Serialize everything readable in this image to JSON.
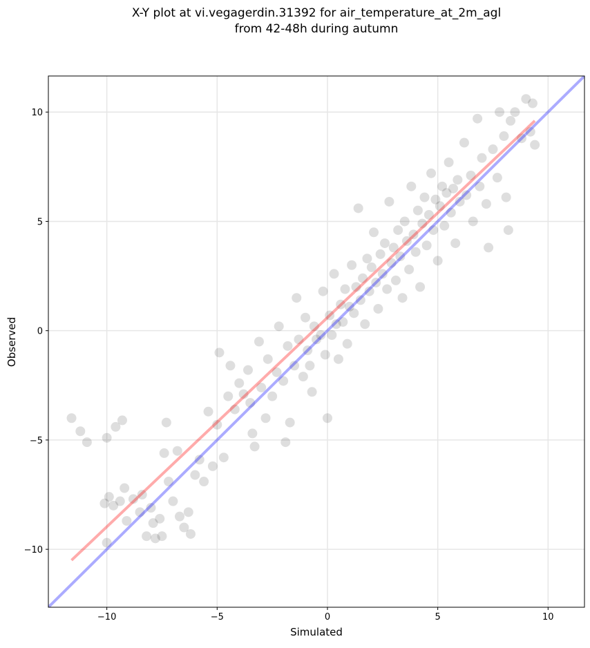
{
  "chart_data": {
    "type": "scatter",
    "title": [
      "X-Y plot at vi.vegagerdin.31392 for air_temperature_at_2m_agl",
      "from 42-48h during autumn"
    ],
    "xlabel": "Simulated",
    "ylabel": "Observed",
    "xlim": [
      -12.65,
      11.65
    ],
    "ylim": [
      -12.65,
      11.65
    ],
    "xticks": [
      {
        "value": -10,
        "label": "−10"
      },
      {
        "value": -5,
        "label": "−5"
      },
      0,
      5,
      10
    ],
    "yticks": [
      {
        "value": -10,
        "label": "−10"
      },
      {
        "value": -5,
        "label": "−5"
      },
      0,
      5,
      10
    ],
    "grid": true,
    "color": "#000000",
    "x": [
      -11.6,
      -11.2,
      -10.9,
      -10.0,
      -9.6,
      -9.3,
      -10.1,
      -9.9,
      -9.7,
      -9.4,
      -9.2,
      -9.1,
      -10.0,
      -8.8,
      -8.5,
      -8.4,
      -8.2,
      -8.0,
      -7.9,
      -7.8,
      -7.6,
      -7.5,
      -7.4,
      -7.3,
      -7.2,
      -7.0,
      -6.8,
      -6.7,
      -6.5,
      -6.3,
      -6.2,
      -6.0,
      -5.8,
      -5.6,
      -5.4,
      -5.2,
      -5.0,
      -4.9,
      -4.7,
      -4.5,
      -4.4,
      -4.2,
      -4.0,
      -3.8,
      -3.6,
      -3.5,
      -3.4,
      -3.3,
      -3.1,
      -3.0,
      -2.8,
      -2.7,
      -2.5,
      -2.3,
      -2.2,
      -2.0,
      -1.9,
      -1.8,
      -1.7,
      -1.5,
      -1.4,
      -1.3,
      -1.1,
      -1.0,
      -0.9,
      -0.8,
      -0.7,
      -0.6,
      -0.5,
      -0.3,
      -0.2,
      -0.1,
      0.0,
      0.1,
      0.2,
      0.3,
      0.4,
      0.5,
      0.6,
      0.7,
      0.8,
      0.9,
      1.0,
      1.1,
      1.2,
      1.3,
      1.4,
      1.5,
      1.6,
      1.7,
      1.8,
      1.9,
      2.0,
      2.1,
      2.2,
      2.3,
      2.4,
      2.5,
      2.6,
      2.7,
      2.8,
      2.9,
      3.0,
      3.1,
      3.2,
      3.3,
      3.4,
      3.5,
      3.6,
      3.7,
      3.8,
      3.9,
      4.0,
      4.1,
      4.2,
      4.3,
      4.4,
      4.5,
      4.6,
      4.7,
      4.8,
      4.9,
      5.0,
      5.1,
      5.2,
      5.3,
      5.4,
      5.5,
      5.6,
      5.7,
      5.8,
      5.9,
      6.0,
      6.2,
      6.3,
      6.5,
      6.6,
      6.8,
      6.9,
      7.0,
      7.2,
      7.3,
      7.5,
      7.7,
      7.8,
      8.0,
      8.1,
      8.2,
      8.3,
      8.5,
      8.8,
      9.0,
      9.2,
      9.4,
      9.3
    ],
    "y": [
      -4.0,
      -4.6,
      -5.1,
      -4.9,
      -4.4,
      -4.1,
      -7.9,
      -7.6,
      -8.0,
      -7.8,
      -7.2,
      -8.7,
      -9.7,
      -7.7,
      -8.3,
      -7.5,
      -9.4,
      -8.1,
      -8.8,
      -9.5,
      -8.6,
      -9.4,
      -5.6,
      -4.2,
      -6.9,
      -7.8,
      -5.5,
      -8.5,
      -9.0,
      -8.3,
      -9.3,
      -6.6,
      -5.9,
      -6.9,
      -3.7,
      -6.2,
      -4.3,
      -1.0,
      -5.8,
      -3.0,
      -1.6,
      -3.6,
      -2.4,
      -2.9,
      -1.8,
      -3.3,
      -4.7,
      -5.3,
      -0.5,
      -2.6,
      -4.0,
      -1.3,
      -3.0,
      -1.9,
      0.2,
      -2.3,
      -5.1,
      -0.7,
      -4.2,
      -1.6,
      1.5,
      -0.4,
      -2.1,
      0.6,
      -0.9,
      -1.6,
      -2.8,
      0.2,
      -0.4,
      -0.2,
      1.8,
      -1.1,
      -4.0,
      0.7,
      -0.2,
      2.6,
      0.3,
      -1.3,
      1.2,
      0.4,
      1.9,
      -0.6,
      1.1,
      3.0,
      0.8,
      2.0,
      5.6,
      1.4,
      2.4,
      0.3,
      3.3,
      1.8,
      2.9,
      4.5,
      2.2,
      1.0,
      3.5,
      2.6,
      4.0,
      1.9,
      5.9,
      3.1,
      3.8,
      2.3,
      4.6,
      3.4,
      1.5,
      5.0,
      4.1,
      2.8,
      6.6,
      4.4,
      3.6,
      5.5,
      2.0,
      4.9,
      6.1,
      3.9,
      5.3,
      7.2,
      4.6,
      6.0,
      3.2,
      5.7,
      6.6,
      4.8,
      6.3,
      7.7,
      5.4,
      6.5,
      4.0,
      6.9,
      5.9,
      8.6,
      6.2,
      7.1,
      5.0,
      9.7,
      6.6,
      7.9,
      5.8,
      3.8,
      8.3,
      7.0,
      10.0,
      8.9,
      6.1,
      4.6,
      9.6,
      10.0,
      8.8,
      10.6,
      9.1,
      8.5,
      10.4
    ],
    "lines": [
      {
        "color": "#0000ff",
        "x": [
          -12.65,
          11.65
        ],
        "y": [
          -12.65,
          11.65
        ]
      },
      {
        "color": "#ff0000",
        "x": [
          -11.6,
          9.4
        ],
        "y": [
          -10.5,
          9.6
        ]
      }
    ]
  }
}
